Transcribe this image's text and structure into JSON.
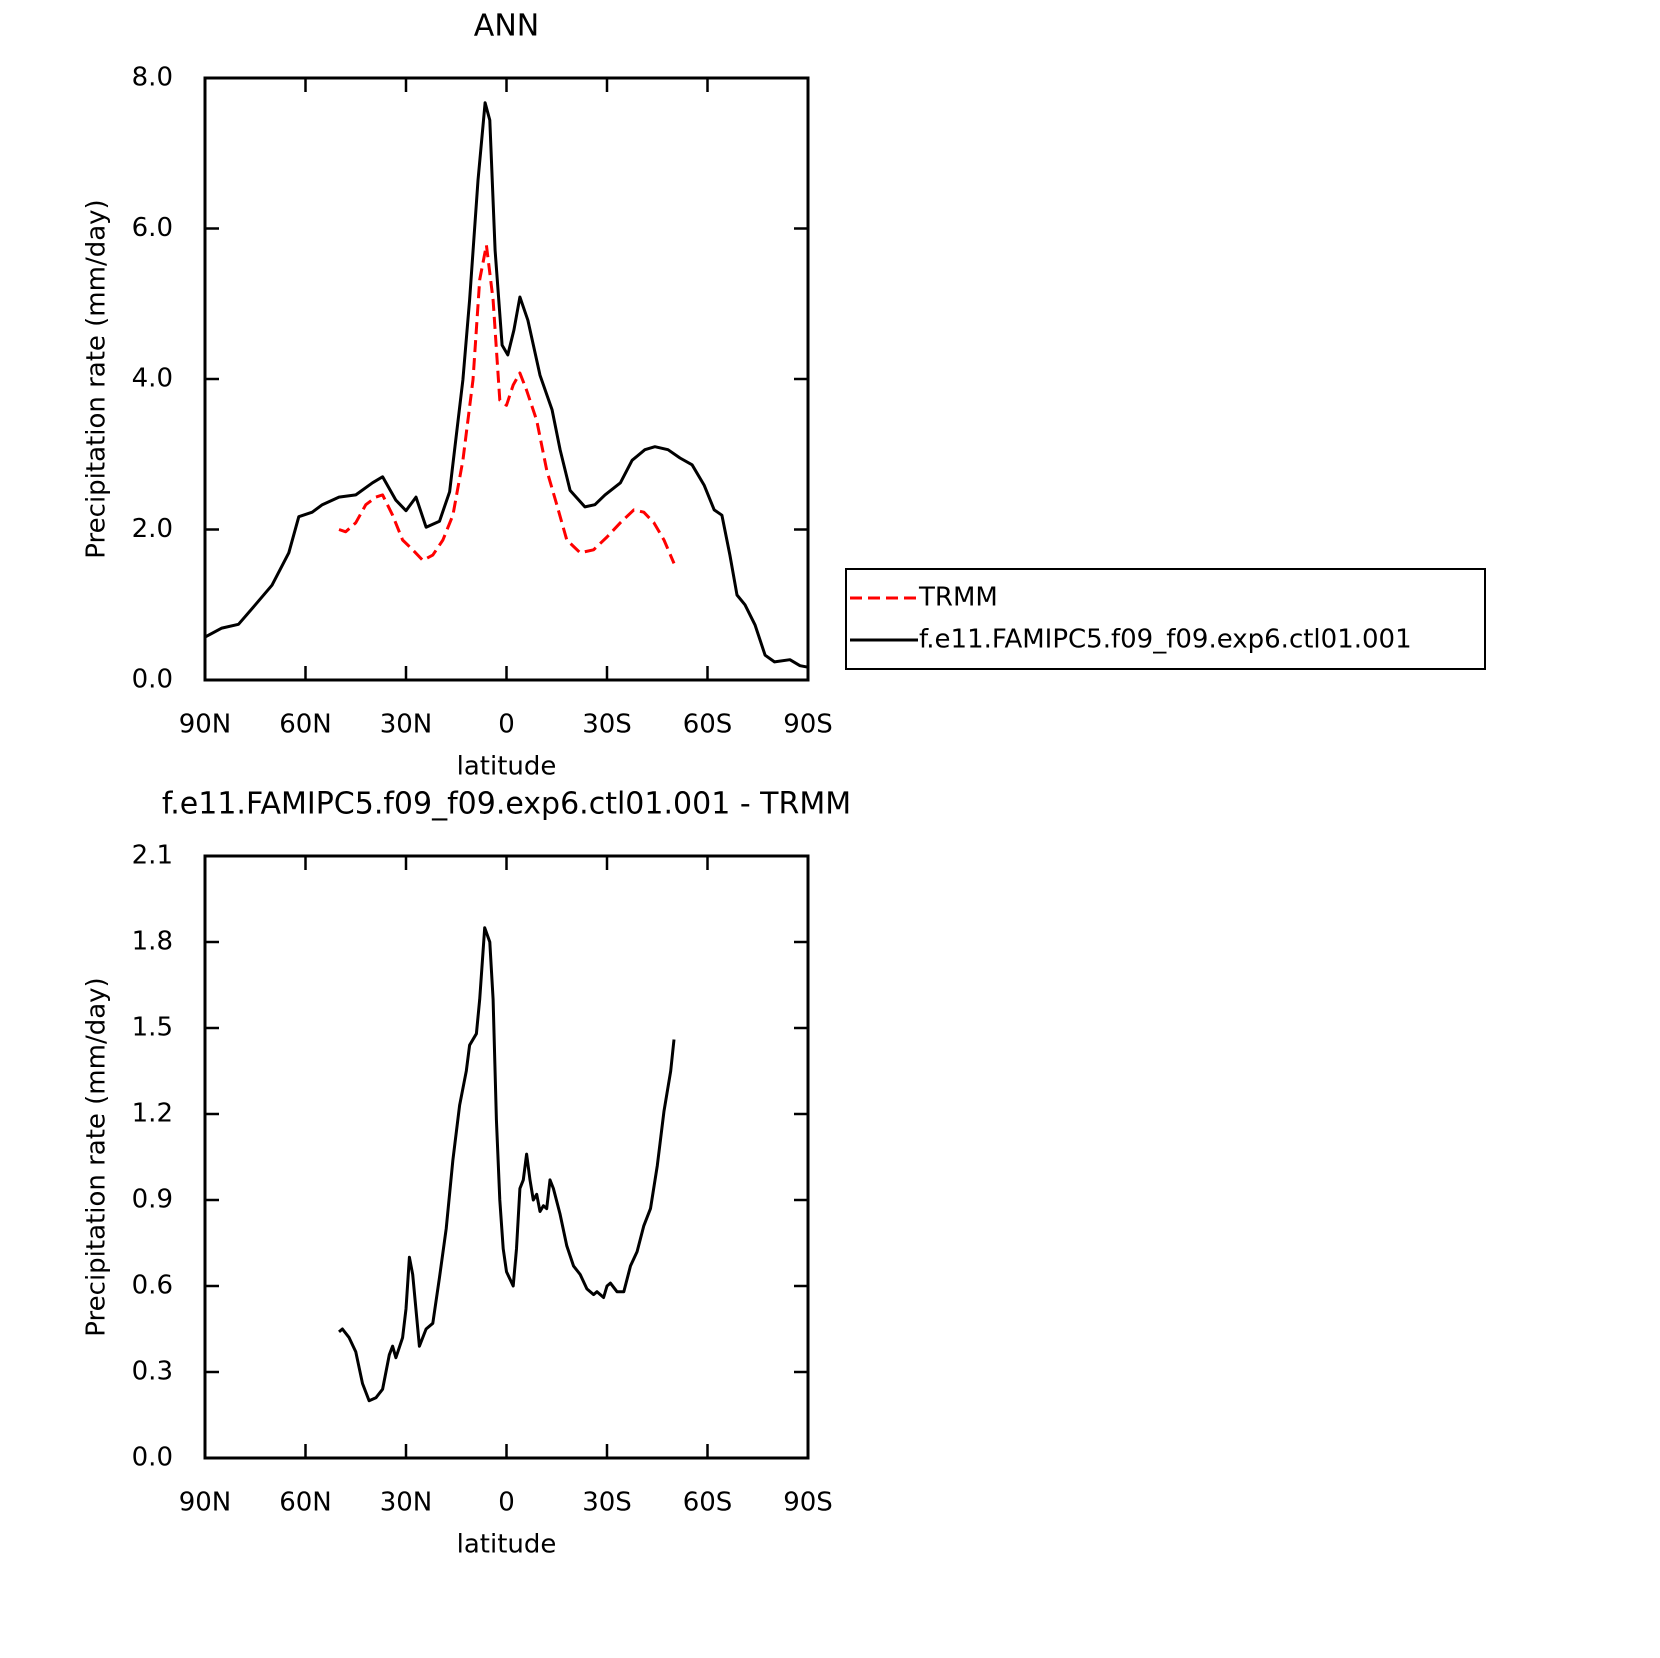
{
  "chart_data": [
    {
      "type": "line",
      "title": "ANN",
      "xlabel": "latitude",
      "ylabel": "Precipitation rate (mm/day)",
      "xlim": [
        90,
        -90
      ],
      "xticks": [
        {
          "value": 90,
          "label": "90N"
        },
        {
          "value": 60,
          "label": "60N"
        },
        {
          "value": 30,
          "label": "30N"
        },
        0,
        {
          "value": -30,
          "label": "30S"
        },
        {
          "value": -60,
          "label": "60S"
        },
        {
          "value": -90,
          "label": "90S"
        }
      ],
      "ylim": [
        0,
        8
      ],
      "yticks": [
        {
          "value": 0,
          "label": "0.0"
        },
        {
          "value": 2,
          "label": "2.0"
        },
        {
          "value": 4,
          "label": "4.0"
        },
        {
          "value": 6,
          "label": "6.0"
        },
        {
          "value": 8,
          "label": "8.0"
        }
      ],
      "legend": "outside-right",
      "series": [
        {
          "name": "TRMM",
          "color": "#ff0000",
          "dash": true,
          "x": [
            50,
            48,
            45,
            42,
            39,
            37,
            34,
            31,
            28,
            25,
            22,
            19,
            16,
            13,
            10,
            8,
            6,
            4,
            2,
            0,
            -2,
            -4,
            -6,
            -9,
            -12,
            -15,
            -18,
            -22,
            -26,
            -30,
            -34,
            -38,
            -41,
            -44,
            -47,
            -50
          ],
          "values": [
            2.0,
            1.97,
            2.09,
            2.33,
            2.43,
            2.46,
            2.19,
            1.86,
            1.73,
            1.59,
            1.66,
            1.86,
            2.19,
            2.92,
            3.99,
            5.32,
            5.78,
            5.05,
            3.72,
            3.65,
            3.92,
            4.08,
            3.85,
            3.45,
            2.79,
            2.33,
            1.86,
            1.69,
            1.73,
            1.9,
            2.09,
            2.26,
            2.23,
            2.09,
            1.86,
            1.55
          ]
        },
        {
          "name": "f.e11.FAMIPC5.f09_f09.exp6.ctl01.001",
          "color": "#000000",
          "dash": false,
          "x": [
            90,
            85,
            80,
            75,
            70,
            65,
            62,
            58,
            55,
            50,
            45,
            40,
            37,
            33,
            30,
            27,
            24,
            20,
            17,
            13,
            11,
            8.5,
            6.4,
            5,
            3.4,
            1.3,
            -0.4,
            -2.2,
            -4,
            -6.4,
            -10,
            -13.6,
            -16,
            -19,
            -23.4,
            -26.4,
            -29.4,
            -34,
            -37.5,
            -41.3,
            -44.3,
            -48.2,
            -51.8,
            -55.4,
            -59,
            -62,
            -64.3,
            -66.7,
            -68.8,
            -71.2,
            -74.2,
            -77.2,
            -80,
            -84.6,
            -87.6,
            -90
          ],
          "values": [
            0.57,
            0.69,
            0.74,
            1.0,
            1.26,
            1.69,
            2.17,
            2.23,
            2.33,
            2.43,
            2.46,
            2.62,
            2.7,
            2.39,
            2.25,
            2.43,
            2.03,
            2.11,
            2.5,
            3.99,
            5.05,
            6.64,
            7.67,
            7.44,
            5.71,
            4.45,
            4.32,
            4.65,
            5.09,
            4.78,
            4.05,
            3.59,
            3.06,
            2.52,
            2.3,
            2.33,
            2.46,
            2.62,
            2.92,
            3.06,
            3.1,
            3.06,
            2.95,
            2.86,
            2.59,
            2.26,
            2.19,
            1.66,
            1.13,
            1.0,
            0.73,
            0.33,
            0.24,
            0.27,
            0.19,
            0.17
          ]
        }
      ]
    },
    {
      "type": "line",
      "title": "f.e11.FAMIPC5.f09_f09.exp6.ctl01.001 - TRMM",
      "xlabel": "latitude",
      "ylabel": "Precipitation rate (mm/day)",
      "xlim": [
        90,
        -90
      ],
      "xticks": [
        {
          "value": 90,
          "label": "90N"
        },
        {
          "value": 60,
          "label": "60N"
        },
        {
          "value": 30,
          "label": "30N"
        },
        0,
        {
          "value": -30,
          "label": "30S"
        },
        {
          "value": -60,
          "label": "60S"
        },
        {
          "value": -90,
          "label": "90S"
        }
      ],
      "ylim": [
        0,
        2.1
      ],
      "yticks": [
        {
          "value": 0,
          "label": "0.0"
        },
        0.3,
        0.6,
        0.9,
        1.2,
        1.5,
        1.8,
        2.1
      ],
      "series": [
        {
          "color": "#000000",
          "dash": false,
          "x": [
            50,
            49,
            47,
            45,
            43,
            41,
            39,
            37,
            35,
            34,
            33,
            31,
            30,
            29,
            28,
            26,
            24,
            22,
            20,
            18,
            16,
            14,
            12,
            11,
            9,
            8,
            6.5,
            5,
            4,
            3,
            2,
            1,
            0,
            -2,
            -3,
            -4,
            -5,
            -6,
            -7,
            -8,
            -9,
            -10,
            -11,
            -12,
            -13,
            -14,
            -16,
            -18,
            -20,
            -22,
            -24,
            -26,
            -27,
            -29,
            -30,
            -31,
            -33,
            -35,
            -37,
            -39,
            -41,
            -43,
            -45,
            -47,
            -49,
            -50
          ],
          "values": [
            0.44,
            0.45,
            0.42,
            0.37,
            0.26,
            0.2,
            0.21,
            0.24,
            0.36,
            0.39,
            0.35,
            0.42,
            0.52,
            0.7,
            0.64,
            0.39,
            0.45,
            0.47,
            0.63,
            0.8,
            1.04,
            1.23,
            1.35,
            1.44,
            1.48,
            1.6,
            1.85,
            1.8,
            1.6,
            1.18,
            0.9,
            0.73,
            0.65,
            0.6,
            0.73,
            0.94,
            0.97,
            1.06,
            0.97,
            0.9,
            0.92,
            0.86,
            0.88,
            0.87,
            0.97,
            0.94,
            0.85,
            0.74,
            0.67,
            0.64,
            0.59,
            0.57,
            0.58,
            0.56,
            0.6,
            0.61,
            0.58,
            0.58,
            0.67,
            0.72,
            0.81,
            0.87,
            1.02,
            1.21,
            1.35,
            1.46
          ]
        }
      ]
    }
  ]
}
